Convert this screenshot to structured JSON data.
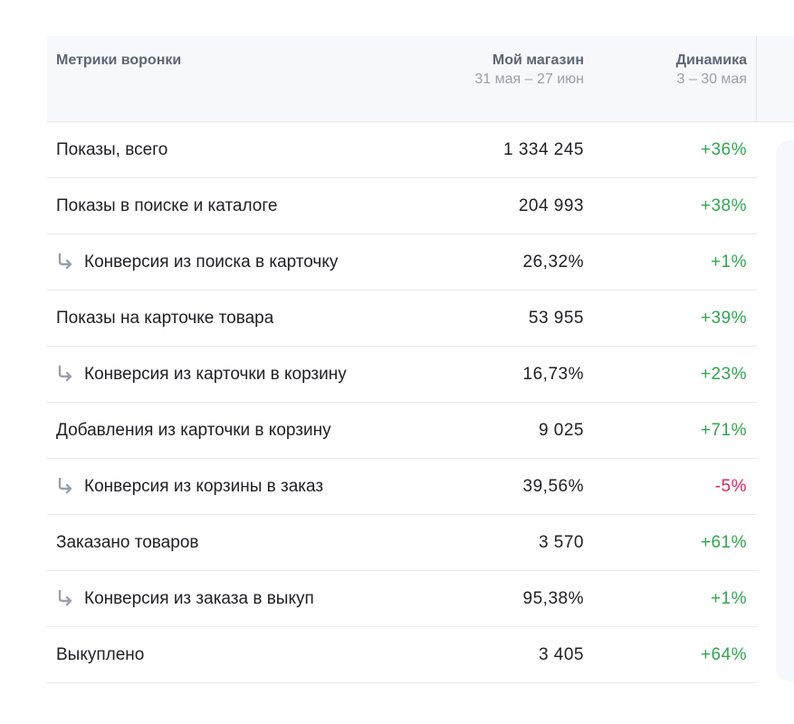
{
  "header": {
    "metric_label": "Метрики воронки",
    "store_label": "Мой магазин",
    "store_period": "31 мая – 27 июн",
    "dynamics_label": "Динамика",
    "dynamics_period": "3 – 30 мая"
  },
  "colors": {
    "positive": "#2fa84f",
    "negative": "#e0245e",
    "header_bg": "#f6f8fb"
  },
  "rows": [
    {
      "label": "Показы, всего",
      "value": "1 334 245",
      "delta": "+36%",
      "sub": false,
      "trend": "pos"
    },
    {
      "label": "Показы в поиске и каталоге",
      "value": "204 993",
      "delta": "+38%",
      "sub": false,
      "trend": "pos"
    },
    {
      "label": "Конверсия из поиска в карточку",
      "value": "26,32%",
      "delta": "+1%",
      "sub": true,
      "trend": "pos"
    },
    {
      "label": "Показы на карточке товара",
      "value": "53 955",
      "delta": "+39%",
      "sub": false,
      "trend": "pos"
    },
    {
      "label": "Конверсия из карточки в корзину",
      "value": "16,73%",
      "delta": "+23%",
      "sub": true,
      "trend": "pos"
    },
    {
      "label": "Добавления из карточки в корзину",
      "value": "9 025",
      "delta": "+71%",
      "sub": false,
      "trend": "pos"
    },
    {
      "label": "Конверсия из корзины в заказ",
      "value": "39,56%",
      "delta": "-5%",
      "sub": true,
      "trend": "neg"
    },
    {
      "label": "Заказано товаров",
      "value": "3 570",
      "delta": "+61%",
      "sub": false,
      "trend": "pos"
    },
    {
      "label": "Конверсия из заказа в выкуп",
      "value": "95,38%",
      "delta": "+1%",
      "sub": true,
      "trend": "pos"
    },
    {
      "label": "Выкуплено",
      "value": "3 405",
      "delta": "+64%",
      "sub": false,
      "trend": "pos"
    }
  ]
}
